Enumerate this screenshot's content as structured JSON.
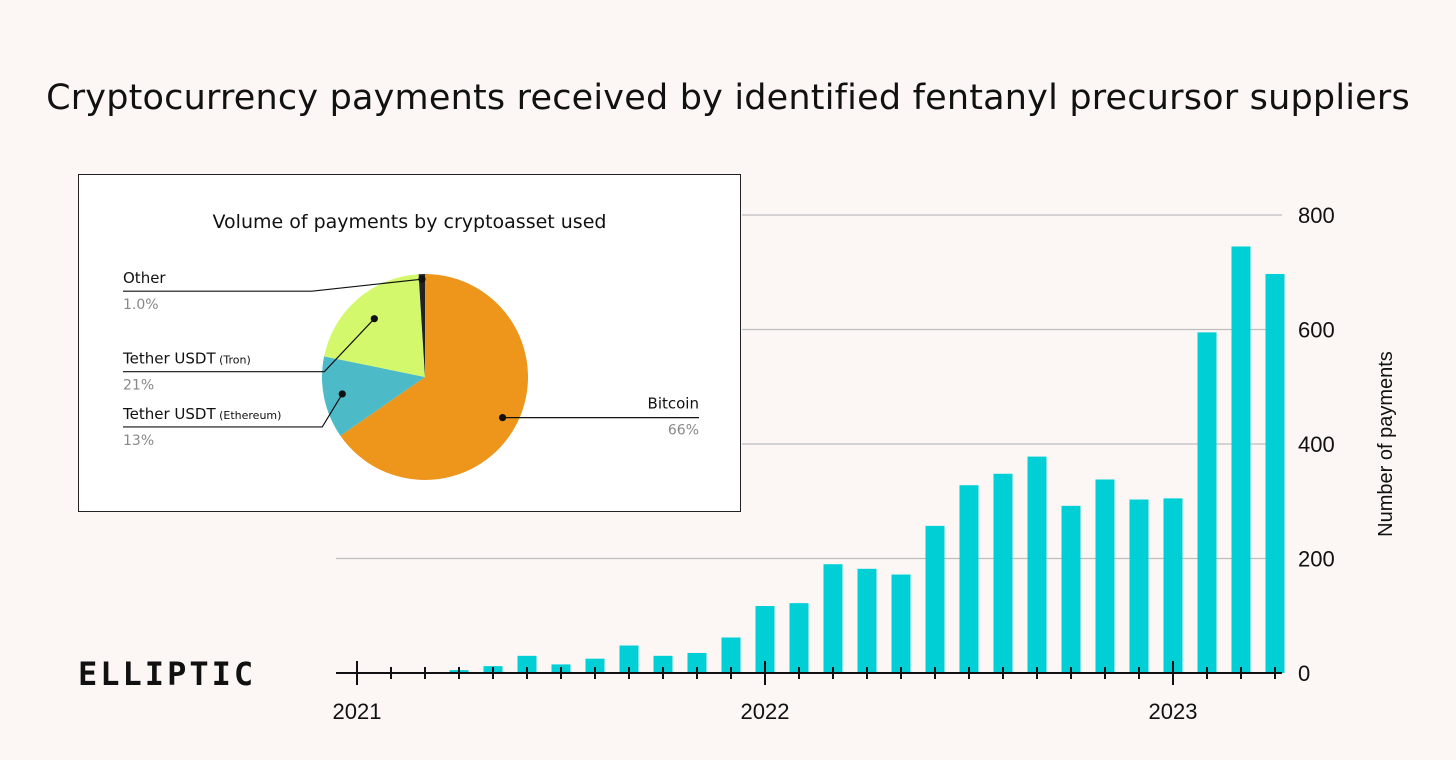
{
  "title": "Cryptocurrency payments received by identified fentanyl precursor suppliers",
  "logo_text": "ELLIPTIC",
  "colors": {
    "background": "#fcf7f4",
    "bar": "#00cfd6",
    "grid": "#bdbdbd",
    "bitcoin": "#ee951b",
    "tether_tron": "#d4f86b",
    "tether_ethereum": "#4dbac8",
    "other": "#222222"
  },
  "chart_data": [
    {
      "type": "bar",
      "title": "Cryptocurrency payments received by identified fentanyl precursor suppliers",
      "xlabel": "",
      "ylabel": "Number of payments",
      "ylim": [
        0,
        800
      ],
      "yticks": [
        0,
        200,
        400,
        600,
        800
      ],
      "y_axis_position": "right",
      "grid": true,
      "x_tick_labels": [
        "2021",
        "2022",
        "2023"
      ],
      "categories": [
        "2021-01",
        "2021-02",
        "2021-03",
        "2021-04",
        "2021-05",
        "2021-06",
        "2021-07",
        "2021-08",
        "2021-09",
        "2021-10",
        "2021-11",
        "2021-12",
        "2022-01",
        "2022-02",
        "2022-03",
        "2022-04",
        "2022-05",
        "2022-06",
        "2022-07",
        "2022-08",
        "2022-09",
        "2022-10",
        "2022-11",
        "2022-12",
        "2023-01",
        "2023-02",
        "2023-03",
        "2023-04"
      ],
      "values": [
        0,
        0,
        0,
        5,
        12,
        30,
        15,
        25,
        48,
        30,
        35,
        62,
        117,
        122,
        190,
        182,
        172,
        257,
        328,
        348,
        378,
        292,
        338,
        303,
        305,
        595,
        745,
        697
      ]
    },
    {
      "type": "pie",
      "title": "Volume of payments by cryptoasset used",
      "slices": [
        {
          "name": "Bitcoin",
          "label": "Bitcoin",
          "sublabel": "",
          "pct_text": "66%",
          "value": 66,
          "color_key": "bitcoin"
        },
        {
          "name": "Tether USDT (Ethereum)",
          "label": "Tether USDT",
          "sublabel": "(Ethereum)",
          "pct_text": "13%",
          "value": 13,
          "color_key": "tether_ethereum"
        },
        {
          "name": "Tether USDT (Tron)",
          "label": "Tether USDT",
          "sublabel": "(Tron)",
          "pct_text": "21%",
          "value": 21,
          "color_key": "tether_tron"
        },
        {
          "name": "Other",
          "label": "Other",
          "sublabel": "",
          "pct_text": "1.0%",
          "value": 1.0,
          "color_key": "other"
        }
      ]
    }
  ]
}
